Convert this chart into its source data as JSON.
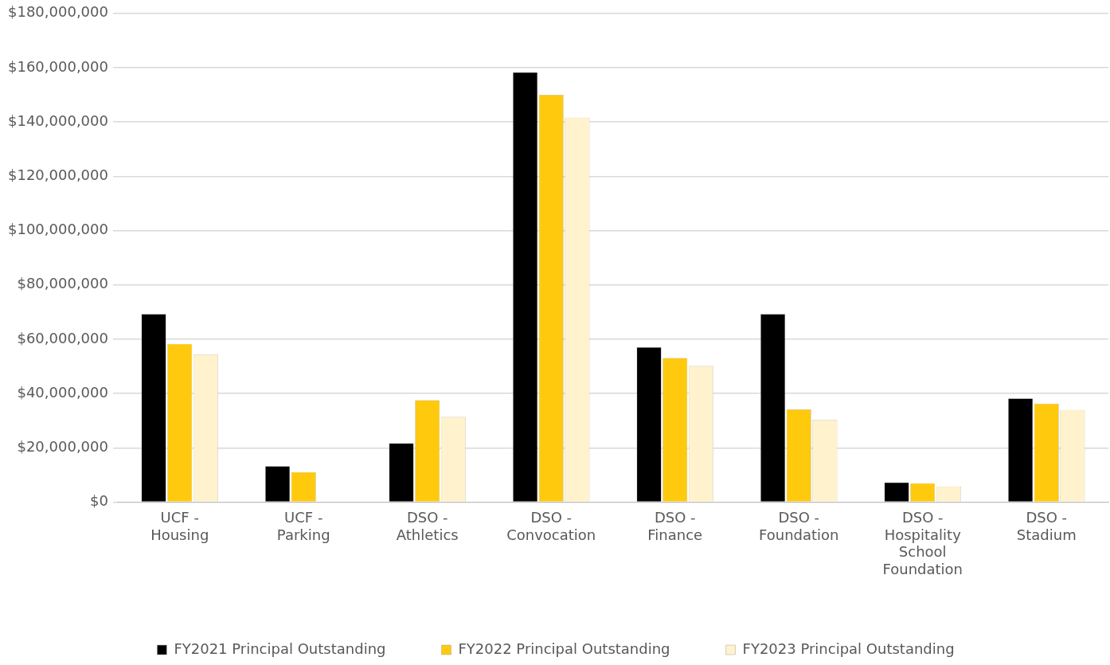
{
  "chart_data": {
    "type": "bar",
    "categories": [
      "UCF - Housing",
      "UCF - Parking",
      "DSO - Athletics",
      "DSO - Convocation",
      "DSO - Finance",
      "DSO - Foundation",
      "DSO - Hospitality School Foundation",
      "DSO - Stadium"
    ],
    "series": [
      {
        "name": "FY2021 Principal Outstanding",
        "color": "#000000",
        "values": [
          69300000,
          13300000,
          21700000,
          158300000,
          57100000,
          69300000,
          7300000,
          38200000
        ]
      },
      {
        "name": "FY2022 Principal Outstanding",
        "color": "#ffc90e",
        "values": [
          58300000,
          11100000,
          37600000,
          150000000,
          53100000,
          34200000,
          7000000,
          36300000
        ]
      },
      {
        "name": "FY2023 Principal Outstanding",
        "color": "#fff2cc",
        "values": [
          54400000,
          0,
          31400000,
          141600000,
          50200000,
          30400000,
          5800000,
          34000000
        ]
      }
    ],
    "ylim": [
      0,
      180000000
    ],
    "yticks": [
      {
        "value": 0,
        "label": "$0"
      },
      {
        "value": 20000000,
        "label": "$20,000,000"
      },
      {
        "value": 40000000,
        "label": "$40,000,000"
      },
      {
        "value": 60000000,
        "label": "$60,000,000"
      },
      {
        "value": 80000000,
        "label": "$80,000,000"
      },
      {
        "value": 100000000,
        "label": "$100,000,000"
      },
      {
        "value": 120000000,
        "label": "$120,000,000"
      },
      {
        "value": 140000000,
        "label": "$140,000,000"
      },
      {
        "value": 160000000,
        "label": "$160,000,000"
      },
      {
        "value": 180000000,
        "label": "$180,000,000"
      }
    ],
    "grid": "y",
    "legend": "bottom"
  }
}
